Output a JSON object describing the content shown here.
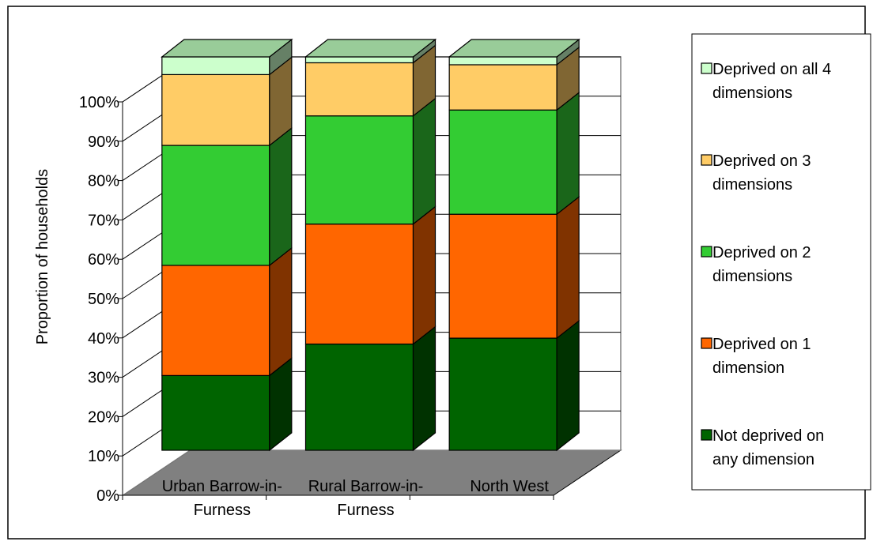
{
  "chart_data": {
    "type": "bar",
    "stacked": true,
    "three_d": true,
    "title": "",
    "xlabel": "",
    "ylabel": "Proportion of households",
    "ylim": [
      0,
      100
    ],
    "y_ticks": [
      "0%",
      "10%",
      "20%",
      "30%",
      "40%",
      "50%",
      "60%",
      "70%",
      "80%",
      "90%",
      "100%"
    ],
    "categories": [
      [
        "Urban Barrow-in-",
        "Furness"
      ],
      [
        "Rural Barrow-in-",
        "Furness"
      ],
      [
        "North West"
      ]
    ],
    "legend_position": "right",
    "grid": true,
    "series": [
      {
        "name": [
          "Not deprived on",
          "any dimension"
        ],
        "values": [
          19,
          27,
          28.5
        ],
        "color": "#006400",
        "side_color": "#003200"
      },
      {
        "name": [
          "Deprived on 1",
          "dimension"
        ],
        "values": [
          28,
          30.5,
          31.5
        ],
        "color": "#ff6600",
        "side_color": "#803300"
      },
      {
        "name": [
          "Deprived on 2",
          "dimensions"
        ],
        "values": [
          30.5,
          27.5,
          26.5
        ],
        "color": "#33cc33",
        "side_color": "#1a661a"
      },
      {
        "name": [
          "Deprived on 3",
          "dimensions"
        ],
        "values": [
          18,
          13.5,
          11.5
        ],
        "color": "#ffcc66",
        "side_color": "#806633"
      },
      {
        "name": [
          "Deprived on all 4",
          "dimensions"
        ],
        "values": [
          4.5,
          1.5,
          2
        ],
        "color": "#ccffcc",
        "side_color": "#668066"
      }
    ]
  }
}
